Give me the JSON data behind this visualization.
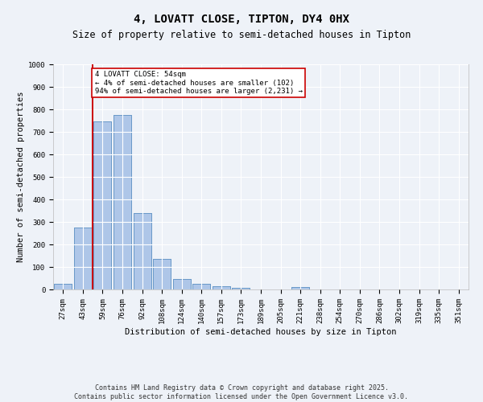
{
  "title": "4, LOVATT CLOSE, TIPTON, DY4 0HX",
  "subtitle": "Size of property relative to semi-detached houses in Tipton",
  "xlabel": "Distribution of semi-detached houses by size in Tipton",
  "ylabel": "Number of semi-detached properties",
  "categories": [
    "27sqm",
    "43sqm",
    "59sqm",
    "76sqm",
    "92sqm",
    "108sqm",
    "124sqm",
    "140sqm",
    "157sqm",
    "173sqm",
    "189sqm",
    "205sqm",
    "221sqm",
    "238sqm",
    "254sqm",
    "270sqm",
    "286sqm",
    "302sqm",
    "319sqm",
    "335sqm",
    "351sqm"
  ],
  "values": [
    25,
    275,
    745,
    775,
    340,
    135,
    45,
    25,
    13,
    8,
    0,
    0,
    12,
    0,
    0,
    0,
    0,
    0,
    0,
    0,
    0
  ],
  "bar_color": "#aec6e8",
  "bar_edge_color": "#5a8fc2",
  "annotation_box_color": "#cc0000",
  "vline_x_index": 1.5,
  "marker_label": "4 LOVATT CLOSE: 54sqm\n← 4% of semi-detached houses are smaller (102)\n94% of semi-detached houses are larger (2,231) →",
  "ylim": [
    0,
    1000
  ],
  "yticks": [
    0,
    100,
    200,
    300,
    400,
    500,
    600,
    700,
    800,
    900,
    1000
  ],
  "footer": "Contains HM Land Registry data © Crown copyright and database right 2025.\nContains public sector information licensed under the Open Government Licence v3.0.",
  "bg_color": "#eef2f8",
  "grid_color": "#ffffff",
  "title_fontsize": 10,
  "subtitle_fontsize": 8.5,
  "axis_label_fontsize": 7.5,
  "tick_fontsize": 6.5,
  "annotation_fontsize": 6.5,
  "footer_fontsize": 6
}
